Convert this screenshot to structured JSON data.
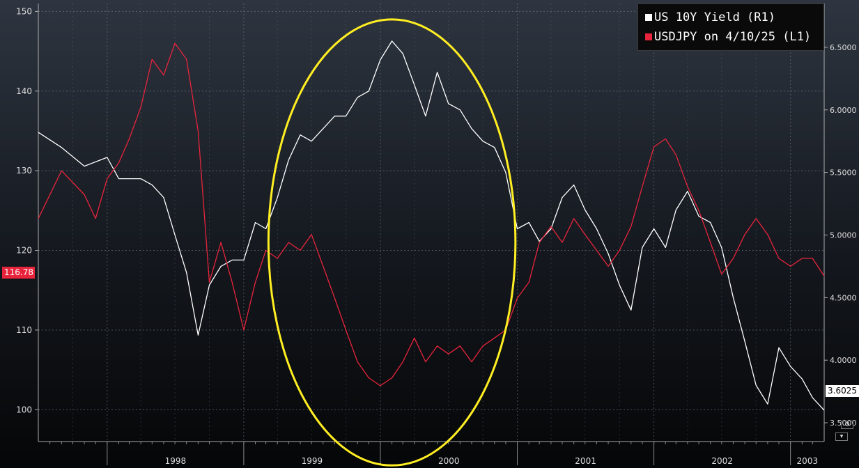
{
  "chart_data": {
    "type": "line",
    "title": "",
    "legend_placement": "top-right",
    "grid": true,
    "x_range": [
      "1997-07",
      "2003-04"
    ],
    "x_ticks": [
      {
        "label": "1998",
        "date": "1998-01"
      },
      {
        "label": "1999",
        "date": "1999-01"
      },
      {
        "label": "2000",
        "date": "2000-01"
      },
      {
        "label": "2001",
        "date": "2001-01"
      },
      {
        "label": "2002",
        "date": "2002-01"
      },
      {
        "label": "2003",
        "date": "2003-01"
      }
    ],
    "y_left": {
      "range": [
        96,
        151
      ],
      "ticks": [
        "100",
        "110",
        "120",
        "130",
        "140",
        "150"
      ]
    },
    "y_right": {
      "range": [
        3.35,
        6.85
      ],
      "ticks": [
        "3.5000",
        "4.0000",
        "4.5000",
        "5.0000",
        "5.5000",
        "6.0000",
        "6.5000"
      ]
    },
    "series": [
      {
        "name": "US 10Y Yield (R1)",
        "axis": "right",
        "color": "#ffffff",
        "points": [
          [
            "1997-07",
            5.82
          ],
          [
            "1997-09",
            5.7
          ],
          [
            "1997-11",
            5.55
          ],
          [
            "1998-01",
            5.62
          ],
          [
            "1998-02",
            5.45
          ],
          [
            "1998-04",
            5.45
          ],
          [
            "1998-05",
            5.4
          ],
          [
            "1998-06",
            5.3
          ],
          [
            "1998-07",
            5.0
          ],
          [
            "1998-08",
            4.7
          ],
          [
            "1998-09",
            4.2
          ],
          [
            "1998-10",
            4.6
          ],
          [
            "1998-11",
            4.75
          ],
          [
            "1998-12",
            4.8
          ],
          [
            "1999-01",
            4.8
          ],
          [
            "1999-02",
            5.1
          ],
          [
            "1999-03",
            5.05
          ],
          [
            "1999-04",
            5.3
          ],
          [
            "1999-05",
            5.6
          ],
          [
            "1999-06",
            5.8
          ],
          [
            "1999-07",
            5.75
          ],
          [
            "1999-08",
            5.85
          ],
          [
            "1999-09",
            5.95
          ],
          [
            "1999-10",
            5.95
          ],
          [
            "1999-11",
            6.1
          ],
          [
            "1999-12",
            6.15
          ],
          [
            "2000-01",
            6.4
          ],
          [
            "2000-02",
            6.55
          ],
          [
            "2000-03",
            6.45
          ],
          [
            "2000-04",
            6.2
          ],
          [
            "2000-05",
            5.95
          ],
          [
            "2000-06",
            6.3
          ],
          [
            "2000-07",
            6.05
          ],
          [
            "2000-08",
            6.0
          ],
          [
            "2000-09",
            5.85
          ],
          [
            "2000-10",
            5.75
          ],
          [
            "2000-11",
            5.7
          ],
          [
            "2000-12",
            5.5
          ],
          [
            "2001-01",
            5.05
          ],
          [
            "2001-02",
            5.1
          ],
          [
            "2001-03",
            4.95
          ],
          [
            "2001-04",
            5.05
          ],
          [
            "2001-05",
            5.3
          ],
          [
            "2001-06",
            5.4
          ],
          [
            "2001-07",
            5.2
          ],
          [
            "2001-08",
            5.05
          ],
          [
            "2001-09",
            4.85
          ],
          [
            "2001-10",
            4.6
          ],
          [
            "2001-11",
            4.4
          ],
          [
            "2001-12",
            4.9
          ],
          [
            "2002-01",
            5.05
          ],
          [
            "2002-02",
            4.9
          ],
          [
            "2002-03",
            5.2
          ],
          [
            "2002-04",
            5.35
          ],
          [
            "2002-05",
            5.15
          ],
          [
            "2002-06",
            5.1
          ],
          [
            "2002-07",
            4.9
          ],
          [
            "2002-08",
            4.5
          ],
          [
            "2002-09",
            4.15
          ],
          [
            "2002-10",
            3.8
          ],
          [
            "2002-11",
            3.65
          ],
          [
            "2002-12",
            4.1
          ],
          [
            "2003-01",
            3.95
          ],
          [
            "2003-02",
            3.85
          ],
          [
            "2003-03",
            3.7
          ],
          [
            "2003-04",
            3.6
          ]
        ]
      },
      {
        "name": "USDJPY on 4/10/25 (L1)",
        "axis": "left",
        "color": "#e8243c",
        "points": [
          [
            "1997-07",
            124
          ],
          [
            "1997-09",
            130
          ],
          [
            "1997-11",
            127
          ],
          [
            "1997-12",
            124
          ],
          [
            "1998-01",
            129
          ],
          [
            "1998-02",
            131
          ],
          [
            "1998-03",
            134
          ],
          [
            "1998-04",
            138
          ],
          [
            "1998-05",
            144
          ],
          [
            "1998-06",
            142
          ],
          [
            "1998-07",
            146
          ],
          [
            "1998-08",
            144
          ],
          [
            "1998-09",
            135
          ],
          [
            "1998-10",
            116
          ],
          [
            "1998-11",
            121
          ],
          [
            "1998-12",
            116
          ],
          [
            "1999-01",
            110
          ],
          [
            "1999-02",
            116
          ],
          [
            "1999-03",
            120
          ],
          [
            "1999-04",
            119
          ],
          [
            "1999-05",
            121
          ],
          [
            "1999-06",
            120
          ],
          [
            "1999-07",
            122
          ],
          [
            "1999-08",
            118
          ],
          [
            "1999-09",
            114
          ],
          [
            "1999-10",
            110
          ],
          [
            "1999-11",
            106
          ],
          [
            "1999-12",
            104
          ],
          [
            "2000-01",
            103
          ],
          [
            "2000-02",
            104
          ],
          [
            "2000-03",
            106
          ],
          [
            "2000-04",
            109
          ],
          [
            "2000-05",
            106
          ],
          [
            "2000-06",
            108
          ],
          [
            "2000-07",
            107
          ],
          [
            "2000-08",
            108
          ],
          [
            "2000-09",
            106
          ],
          [
            "2000-10",
            108
          ],
          [
            "2000-11",
            109
          ],
          [
            "2000-12",
            110
          ],
          [
            "2001-01",
            114
          ],
          [
            "2001-02",
            116
          ],
          [
            "2001-03",
            121
          ],
          [
            "2001-04",
            123
          ],
          [
            "2001-05",
            121
          ],
          [
            "2001-06",
            124
          ],
          [
            "2001-07",
            122
          ],
          [
            "2001-08",
            120
          ],
          [
            "2001-09",
            118
          ],
          [
            "2001-10",
            120
          ],
          [
            "2001-11",
            123
          ],
          [
            "2001-12",
            128
          ],
          [
            "2002-01",
            133
          ],
          [
            "2002-02",
            134
          ],
          [
            "2002-03",
            132
          ],
          [
            "2002-04",
            128
          ],
          [
            "2002-05",
            125
          ],
          [
            "2002-06",
            121
          ],
          [
            "2002-07",
            117
          ],
          [
            "2002-08",
            119
          ],
          [
            "2002-09",
            122
          ],
          [
            "2002-10",
            124
          ],
          [
            "2002-11",
            122
          ],
          [
            "2002-12",
            119
          ],
          [
            "2003-01",
            118
          ],
          [
            "2003-02",
            119
          ],
          [
            "2003-03",
            119
          ],
          [
            "2003-04",
            116.78
          ]
        ]
      }
    ],
    "annotations": [
      {
        "type": "ellipse",
        "color": "#ffee22",
        "center_date": "2000-02",
        "center_value_left": 121,
        "date_half_width_days": 330,
        "value_half_height_left": 28
      }
    ],
    "last_values": {
      "left": "116.78",
      "right": "3.6025"
    }
  },
  "legend": {
    "items": [
      {
        "label": "US 10Y Yield (R1)",
        "color": "#ffffff"
      },
      {
        "label": "USDJPY on 4/10/25 (L1)",
        "color": "#e8243c"
      }
    ]
  },
  "controls": {
    "settings_icon": "gear-icon",
    "menu_icon": "dropdown-icon"
  }
}
